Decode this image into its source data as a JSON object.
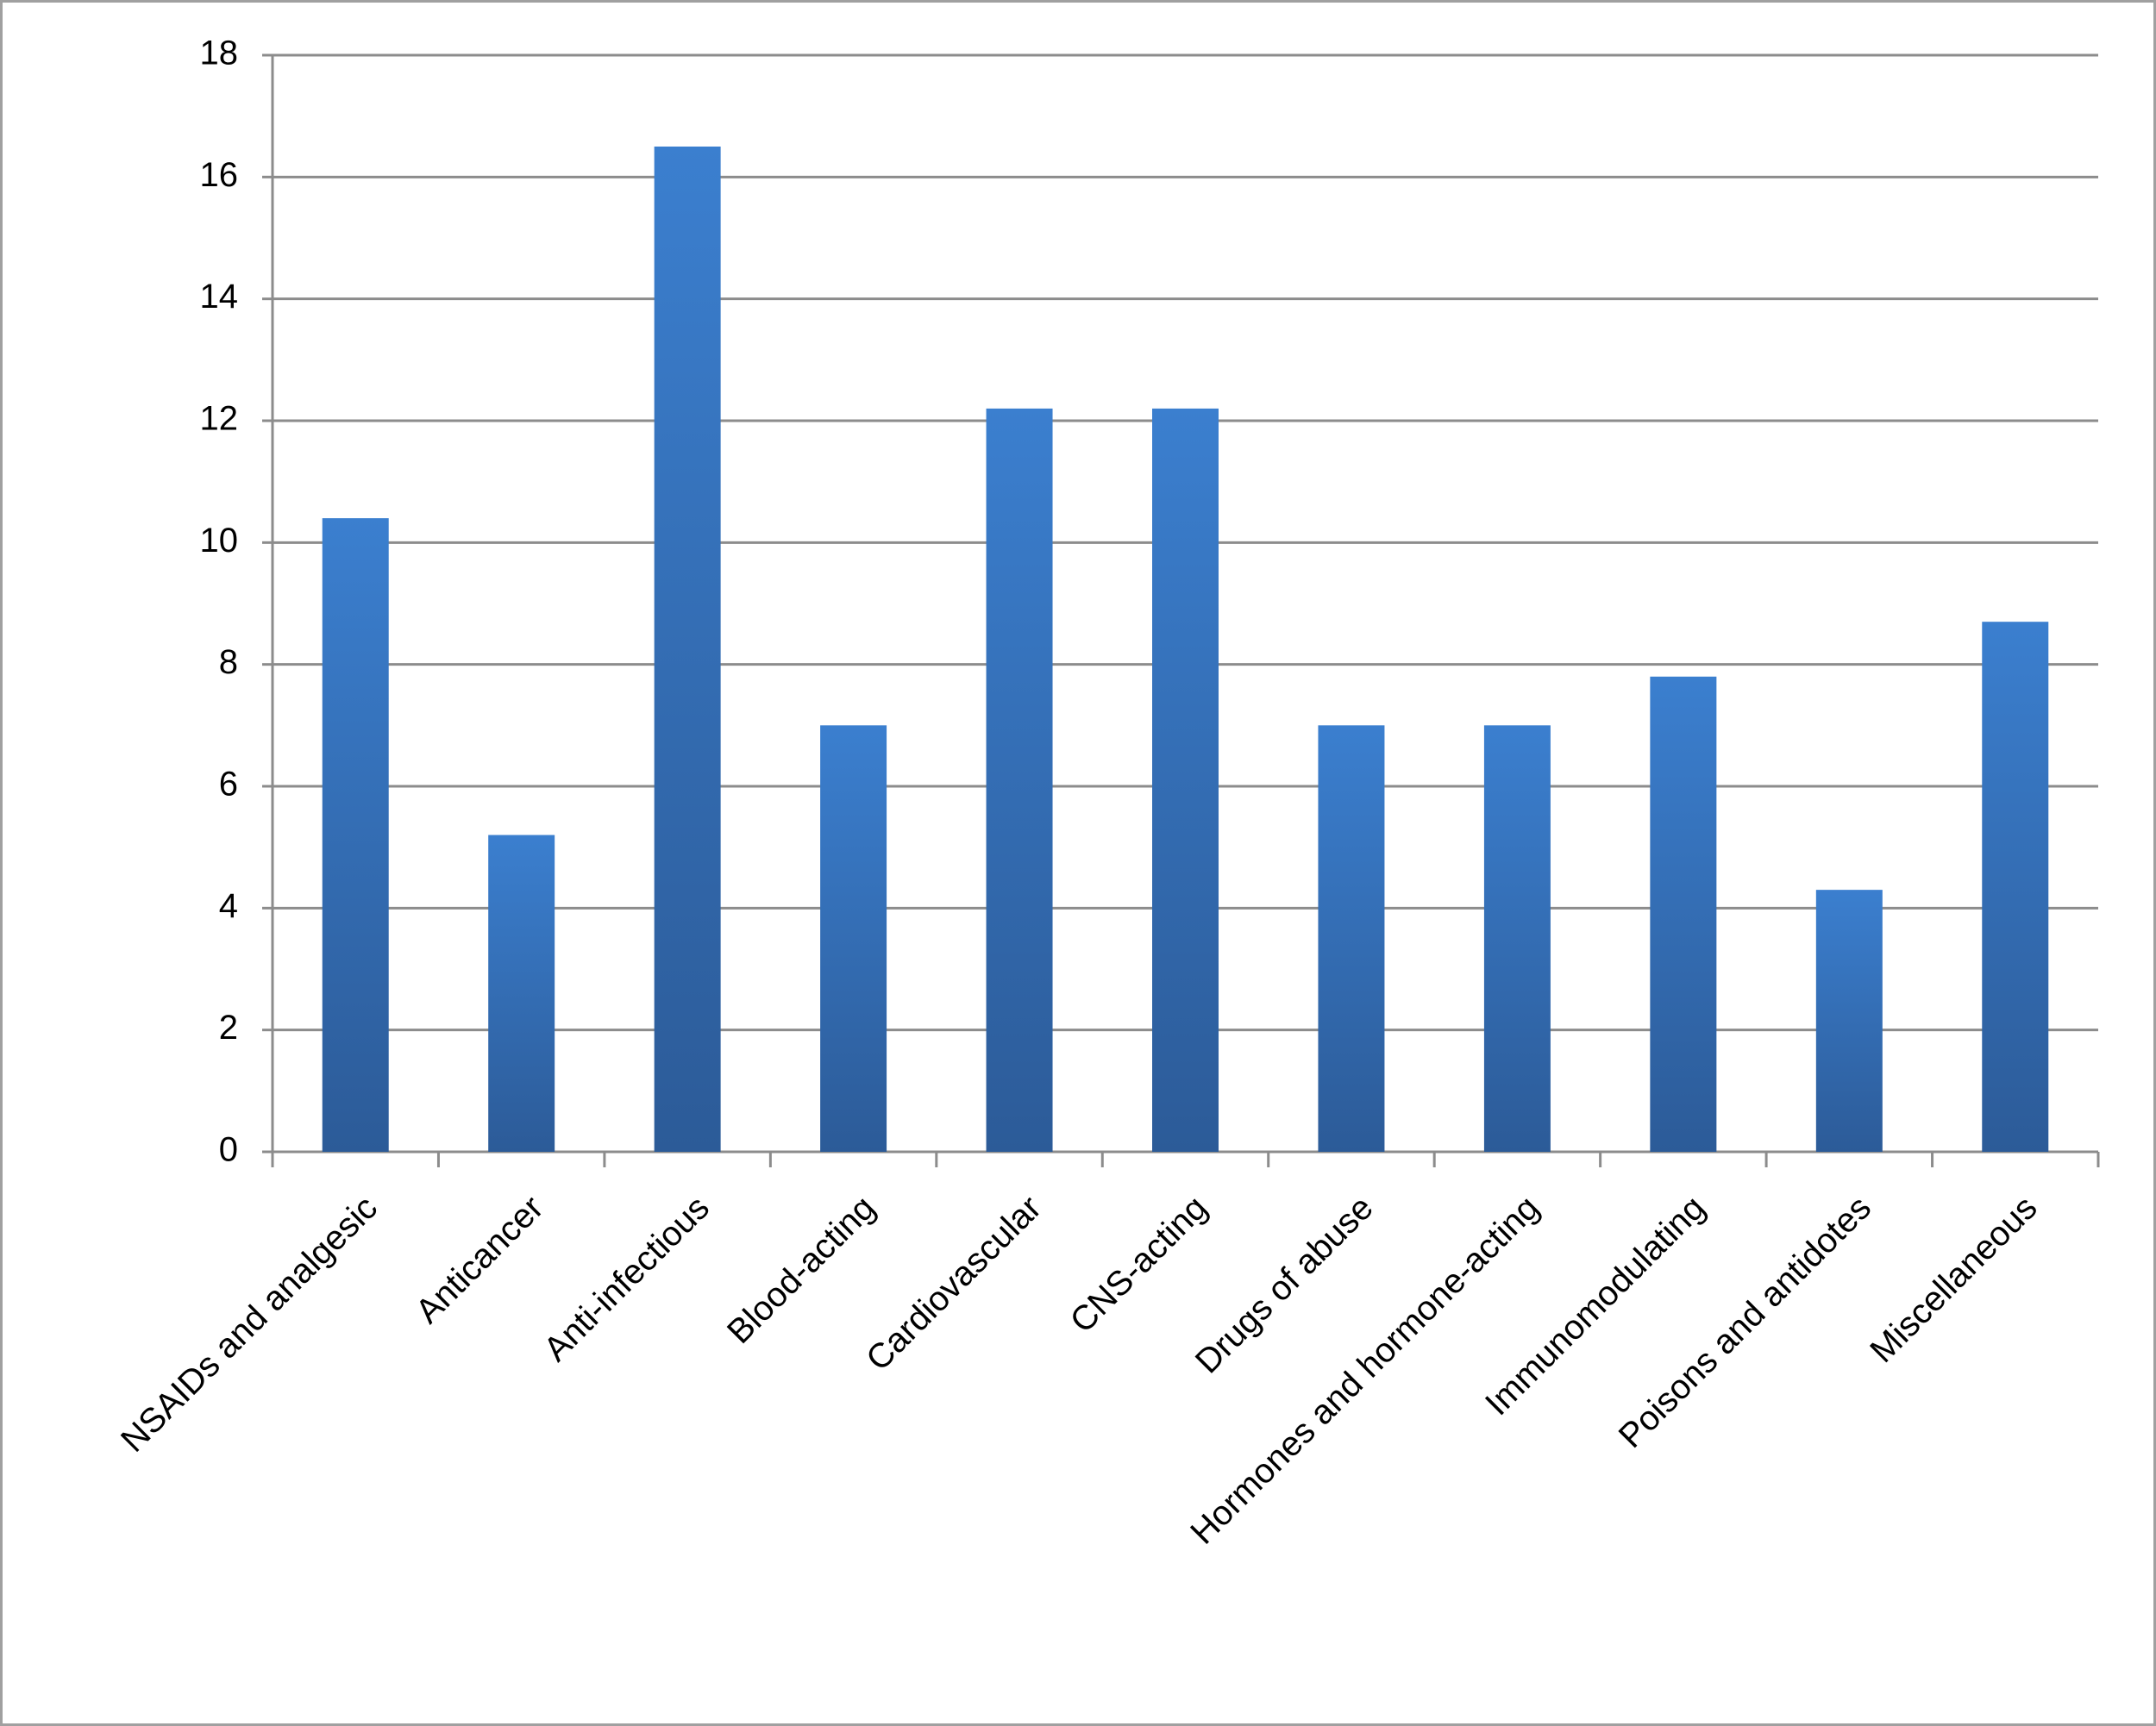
{
  "chart_data": {
    "type": "bar",
    "categories": [
      "NSAIDs and analgesic",
      "Anticancer",
      "Anti-infectious",
      "Blood-acting",
      "Cardiovascular",
      "CNS-acting",
      "Drugs of abuse",
      "Hormones and hormone-acting",
      "Immunomodulating",
      "Poisons and antidotes",
      "Miscellaneous"
    ],
    "values": [
      10.4,
      5.2,
      16.5,
      7.0,
      12.2,
      12.2,
      7.0,
      7.0,
      7.8,
      4.3,
      8.7
    ],
    "color": "#3a7dcc",
    "ylim": [
      0,
      18
    ],
    "yticks": [
      0,
      2,
      4,
      6,
      8,
      10,
      12,
      14,
      16,
      18
    ],
    "grid": true
  }
}
